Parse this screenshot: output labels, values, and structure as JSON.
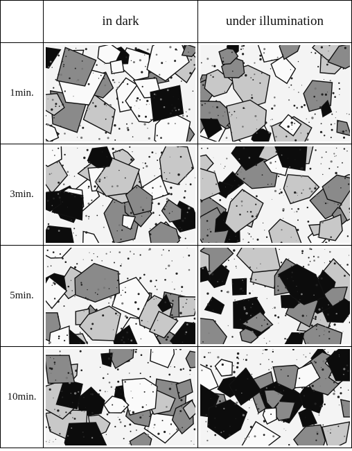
{
  "table": {
    "columns": [
      "in dark",
      "under illumination"
    ],
    "rows": [
      {
        "label": "1min."
      },
      {
        "label": "3min."
      },
      {
        "label": "5min."
      },
      {
        "label": "10min."
      }
    ]
  }
}
